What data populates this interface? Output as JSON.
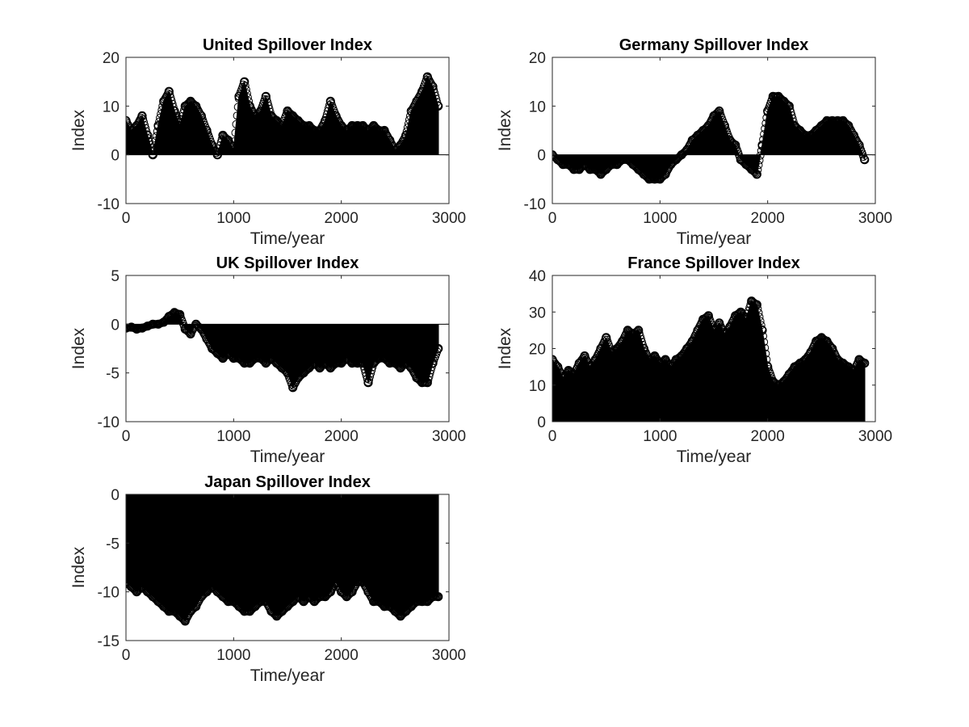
{
  "chart_data": [
    {
      "type": "stem",
      "title": "United Spillover Index",
      "xlabel": "Time/year",
      "ylabel": "Index",
      "xlim": [
        0,
        3000
      ],
      "ylim": [
        -10,
        20
      ],
      "xticks": [
        0,
        1000,
        2000,
        3000
      ],
      "yticks": [
        -10,
        0,
        10,
        20
      ],
      "color": "#000000",
      "x": [
        0,
        50,
        100,
        150,
        200,
        250,
        300,
        350,
        400,
        450,
        500,
        550,
        600,
        650,
        700,
        750,
        800,
        850,
        900,
        950,
        1000,
        1050,
        1100,
        1150,
        1200,
        1250,
        1300,
        1350,
        1400,
        1450,
        1500,
        1550,
        1600,
        1650,
        1700,
        1750,
        1800,
        1850,
        1900,
        1950,
        2000,
        2050,
        2100,
        2150,
        2200,
        2250,
        2300,
        2350,
        2400,
        2450,
        2500,
        2550,
        2600,
        2650,
        2700,
        2750,
        2800,
        2850,
        2900
      ],
      "y": [
        7,
        5,
        6,
        8,
        4,
        0,
        6,
        11,
        13,
        9,
        6,
        10,
        11,
        10,
        8,
        5,
        2,
        0,
        4,
        3,
        1,
        12,
        15,
        10,
        8,
        9,
        12,
        8,
        7,
        6,
        9,
        8,
        7,
        6,
        6,
        5,
        5,
        7,
        11,
        8,
        6,
        5,
        6,
        6,
        6,
        5,
        6,
        5,
        5,
        3,
        1,
        2,
        4,
        9,
        11,
        13,
        16,
        14,
        10
      ]
    },
    {
      "type": "stem",
      "title": "Germany Spillover Index",
      "xlabel": "Time/year",
      "ylabel": "Index",
      "xlim": [
        0,
        3000
      ],
      "ylim": [
        -10,
        20
      ],
      "xticks": [
        0,
        1000,
        2000,
        3000
      ],
      "yticks": [
        -10,
        0,
        10,
        20
      ],
      "color": "#000000",
      "x": [
        0,
        50,
        100,
        150,
        200,
        250,
        300,
        350,
        400,
        450,
        500,
        550,
        600,
        650,
        700,
        750,
        800,
        850,
        900,
        950,
        1000,
        1050,
        1100,
        1150,
        1200,
        1250,
        1300,
        1350,
        1400,
        1450,
        1500,
        1550,
        1600,
        1650,
        1700,
        1750,
        1800,
        1850,
        1900,
        1950,
        2000,
        2050,
        2100,
        2150,
        2200,
        2250,
        2300,
        2350,
        2400,
        2450,
        2500,
        2550,
        2600,
        2650,
        2700,
        2750,
        2800,
        2850,
        2900
      ],
      "y": [
        0,
        -1,
        -2,
        -2,
        -3,
        -3,
        -2,
        -3,
        -3,
        -4,
        -3,
        -2,
        -2,
        -1,
        -1,
        -2,
        -3,
        -4,
        -5,
        -5,
        -5,
        -4,
        -2,
        -1,
        0,
        1,
        3,
        4,
        5,
        6,
        8,
        9,
        6,
        3,
        2,
        -1,
        -2,
        -3,
        -4,
        2,
        9,
        12,
        12,
        11,
        10,
        6,
        5,
        4,
        4,
        5,
        6,
        7,
        7,
        7,
        7,
        6,
        4,
        2,
        -1
      ]
    },
    {
      "type": "stem",
      "title": "UK Spillover Index",
      "xlabel": "Time/year",
      "ylabel": "Index",
      "xlim": [
        0,
        3000
      ],
      "ylim": [
        -10,
        5
      ],
      "xticks": [
        0,
        1000,
        2000,
        3000
      ],
      "yticks": [
        -10,
        -5,
        0,
        5
      ],
      "color": "#000000",
      "x": [
        0,
        50,
        100,
        150,
        200,
        250,
        300,
        350,
        400,
        450,
        500,
        550,
        600,
        650,
        700,
        750,
        800,
        850,
        900,
        950,
        1000,
        1050,
        1100,
        1150,
        1200,
        1250,
        1300,
        1350,
        1400,
        1450,
        1500,
        1550,
        1600,
        1650,
        1700,
        1750,
        1800,
        1850,
        1900,
        1950,
        2000,
        2050,
        2100,
        2150,
        2200,
        2250,
        2300,
        2350,
        2400,
        2450,
        2500,
        2550,
        2600,
        2650,
        2700,
        2750,
        2800,
        2850,
        2900
      ],
      "y": [
        -0.4,
        -0.3,
        -0.5,
        -0.4,
        -0.2,
        0,
        0,
        0.2,
        0.8,
        1.2,
        1,
        -0.5,
        -1,
        0,
        -0.5,
        -1.5,
        -2.5,
        -3,
        -3.5,
        -3,
        -3.5,
        -3.5,
        -4,
        -4,
        -3.5,
        -3.5,
        -4,
        -3.5,
        -4,
        -4.5,
        -5,
        -6.5,
        -5.5,
        -5,
        -4.5,
        -4,
        -4.5,
        -4,
        -4.5,
        -4,
        -4,
        -3.5,
        -4,
        -4,
        -4,
        -6,
        -4,
        -3.5,
        -3.5,
        -4,
        -4,
        -4.5,
        -4,
        -4.5,
        -5.5,
        -6,
        -6,
        -4,
        -2.5
      ]
    },
    {
      "type": "stem",
      "title": "France Spillover Index",
      "xlabel": "Time/year",
      "ylabel": "Index",
      "xlim": [
        0,
        3000
      ],
      "ylim": [
        0,
        40
      ],
      "xticks": [
        0,
        1000,
        2000,
        3000
      ],
      "yticks": [
        0,
        10,
        20,
        30,
        40
      ],
      "color": "#000000",
      "x": [
        0,
        50,
        100,
        150,
        200,
        250,
        300,
        350,
        400,
        450,
        500,
        550,
        600,
        650,
        700,
        750,
        800,
        850,
        900,
        950,
        1000,
        1050,
        1100,
        1150,
        1200,
        1250,
        1300,
        1350,
        1400,
        1450,
        1500,
        1550,
        1600,
        1650,
        1700,
        1750,
        1800,
        1850,
        1900,
        1950,
        2000,
        2050,
        2100,
        2150,
        2200,
        2250,
        2300,
        2350,
        2400,
        2450,
        2500,
        2550,
        2600,
        2650,
        2700,
        2750,
        2800,
        2850,
        2900
      ],
      "y": [
        17,
        15,
        12,
        14,
        13,
        16,
        18,
        15,
        17,
        20,
        23,
        19,
        20,
        22,
        25,
        24,
        25,
        20,
        17,
        18,
        16,
        17,
        15,
        17,
        18,
        20,
        22,
        25,
        28,
        29,
        25,
        27,
        24,
        26,
        29,
        30,
        28,
        33,
        32,
        25,
        15,
        11,
        10,
        11,
        13,
        15,
        16,
        17,
        19,
        22,
        23,
        22,
        20,
        17,
        16,
        15,
        14,
        17,
        16
      ]
    },
    {
      "type": "stem",
      "title": "Japan Spillover Index",
      "xlabel": "Time/year",
      "ylabel": "Index",
      "xlim": [
        0,
        3000
      ],
      "ylim": [
        -15,
        0
      ],
      "xticks": [
        0,
        1000,
        2000,
        3000
      ],
      "yticks": [
        -15,
        -10,
        -5,
        0
      ],
      "color": "#000000",
      "x": [
        0,
        50,
        100,
        150,
        200,
        250,
        300,
        350,
        400,
        450,
        500,
        550,
        600,
        650,
        700,
        750,
        800,
        850,
        900,
        950,
        1000,
        1050,
        1100,
        1150,
        1200,
        1250,
        1300,
        1350,
        1400,
        1450,
        1500,
        1550,
        1600,
        1650,
        1700,
        1750,
        1800,
        1850,
        1900,
        1950,
        2000,
        2050,
        2100,
        2150,
        2200,
        2250,
        2300,
        2350,
        2400,
        2450,
        2500,
        2550,
        2600,
        2650,
        2700,
        2750,
        2800,
        2850,
        2900
      ],
      "y": [
        -9,
        -9.5,
        -10,
        -9.5,
        -10,
        -10.5,
        -11,
        -11.5,
        -12,
        -12,
        -12.5,
        -13,
        -12,
        -11.5,
        -10.5,
        -10,
        -9.5,
        -10,
        -10.5,
        -11,
        -11,
        -11.5,
        -12,
        -12,
        -11.5,
        -11,
        -11,
        -12,
        -12.5,
        -12,
        -11.5,
        -11,
        -10.5,
        -11,
        -10.5,
        -11,
        -10.5,
        -10.5,
        -10,
        -9,
        -10,
        -10.5,
        -10,
        -9,
        -9,
        -10,
        -11,
        -11,
        -11.5,
        -11.5,
        -12,
        -12.5,
        -12,
        -11.5,
        -11,
        -11,
        -11,
        -10.5,
        -10.5
      ]
    }
  ]
}
